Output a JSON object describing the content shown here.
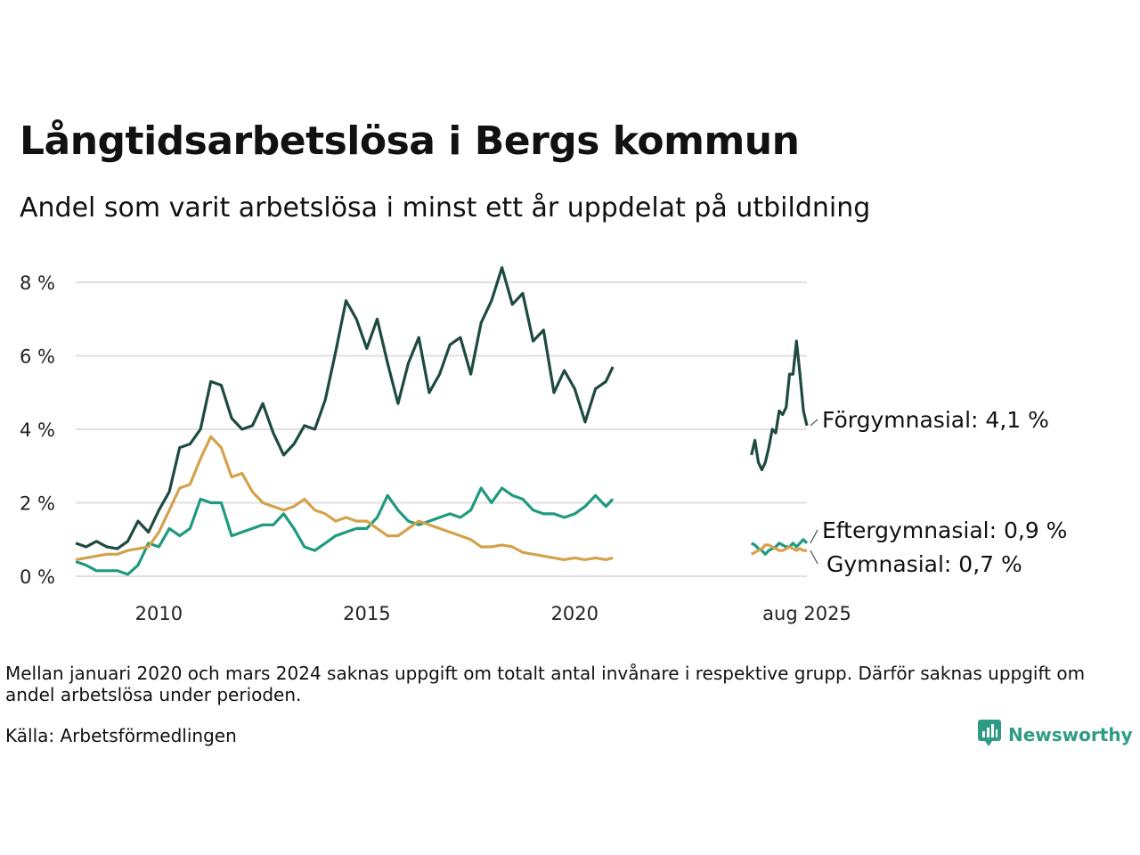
{
  "title": "Långtidsarbetslösa i Bergs kommun",
  "subtitle": "Andel som varit arbetslösa i minst ett år uppdelat på utbildning",
  "note": "Mellan januari 2020 och mars 2024 saknas uppgift om totalt antal invånare i respektive grupp. Därför saknas uppgift om andel arbetslösa under perioden.",
  "source": "Källa: Arbetsförmedlingen",
  "brand": {
    "name": "Newsworthy",
    "icon": "bar-chart-speech-icon",
    "color": "#2e9c84"
  },
  "chart_data": {
    "type": "line",
    "xlabel": "",
    "ylabel": "",
    "ylim": [
      0,
      8.5
    ],
    "y_ticks": [
      {
        "value": 0,
        "label": "0 %"
      },
      {
        "value": 2,
        "label": "2 %"
      },
      {
        "value": 4,
        "label": "4 %"
      },
      {
        "value": 6,
        "label": "6 %"
      },
      {
        "value": 8,
        "label": "8 %"
      }
    ],
    "x_ticks": [
      {
        "value": "2010-01",
        "label": "2010"
      },
      {
        "value": "2015-01",
        "label": "2015"
      },
      {
        "value": "2020-01",
        "label": "2020"
      },
      {
        "value": "2025-08",
        "label": "aug 2025"
      }
    ],
    "grid": true,
    "legend": "end-labels",
    "series": [
      {
        "name": "Förgymnasial",
        "end_label": "Förgymnasial: 4,1 %",
        "color": "#1e4a42",
        "segments": [
          [
            [
              "2008-01",
              0.9
            ],
            [
              "2008-04",
              0.8
            ],
            [
              "2008-07",
              0.95
            ],
            [
              "2008-10",
              0.8
            ],
            [
              "2009-01",
              0.75
            ],
            [
              "2009-04",
              0.95
            ],
            [
              "2009-07",
              1.5
            ],
            [
              "2009-10",
              1.2
            ],
            [
              "2010-01",
              1.8
            ],
            [
              "2010-04",
              2.3
            ],
            [
              "2010-07",
              3.5
            ],
            [
              "2010-10",
              3.6
            ],
            [
              "2011-01",
              4.0
            ],
            [
              "2011-04",
              5.3
            ],
            [
              "2011-07",
              5.2
            ],
            [
              "2011-10",
              4.3
            ],
            [
              "2012-01",
              4.0
            ],
            [
              "2012-04",
              4.1
            ],
            [
              "2012-07",
              4.7
            ],
            [
              "2012-10",
              3.9
            ],
            [
              "2013-01",
              3.3
            ],
            [
              "2013-04",
              3.6
            ],
            [
              "2013-07",
              4.1
            ],
            [
              "2013-10",
              4.0
            ],
            [
              "2014-01",
              4.8
            ],
            [
              "2014-04",
              6.1
            ],
            [
              "2014-07",
              7.5
            ],
            [
              "2014-10",
              7.0
            ],
            [
              "2015-01",
              6.2
            ],
            [
              "2015-04",
              7.0
            ],
            [
              "2015-07",
              5.8
            ],
            [
              "2015-10",
              4.7
            ],
            [
              "2016-01",
              5.8
            ],
            [
              "2016-04",
              6.5
            ],
            [
              "2016-07",
              5.0
            ],
            [
              "2016-10",
              5.5
            ],
            [
              "2017-01",
              6.3
            ],
            [
              "2017-04",
              6.5
            ],
            [
              "2017-07",
              5.5
            ],
            [
              "2017-10",
              6.9
            ],
            [
              "2018-01",
              7.5
            ],
            [
              "2018-04",
              8.4
            ],
            [
              "2018-07",
              7.4
            ],
            [
              "2018-10",
              7.7
            ],
            [
              "2019-01",
              6.4
            ],
            [
              "2019-04",
              6.7
            ],
            [
              "2019-07",
              5.0
            ],
            [
              "2019-10",
              5.6
            ],
            [
              "2020-01",
              5.1
            ],
            [
              "2020-04",
              4.2
            ],
            [
              "2020-07",
              5.1
            ],
            [
              "2020-10",
              5.3
            ],
            [
              "2020-12",
              5.7
            ]
          ],
          [
            [
              "2024-04",
              3.3
            ],
            [
              "2024-05",
              3.7
            ],
            [
              "2024-06",
              3.1
            ],
            [
              "2024-07",
              2.9
            ],
            [
              "2024-08",
              3.1
            ],
            [
              "2024-09",
              3.5
            ],
            [
              "2024-10",
              4.0
            ],
            [
              "2024-11",
              3.9
            ],
            [
              "2024-12",
              4.5
            ],
            [
              "2025-01",
              4.4
            ],
            [
              "2025-02",
              4.6
            ],
            [
              "2025-03",
              5.5
            ],
            [
              "2025-04",
              5.5
            ],
            [
              "2025-05",
              6.4
            ],
            [
              "2025-06",
              5.5
            ],
            [
              "2025-07",
              4.5
            ],
            [
              "2025-08",
              4.1
            ]
          ]
        ]
      },
      {
        "name": "Eftergymnasial",
        "end_label": "Eftergymnasial: 0,9 %",
        "color": "#1f9a80",
        "segments": [
          [
            [
              "2008-01",
              0.4
            ],
            [
              "2008-04",
              0.3
            ],
            [
              "2008-07",
              0.15
            ],
            [
              "2008-10",
              0.15
            ],
            [
              "2009-01",
              0.15
            ],
            [
              "2009-04",
              0.05
            ],
            [
              "2009-07",
              0.3
            ],
            [
              "2009-10",
              0.9
            ],
            [
              "2010-01",
              0.8
            ],
            [
              "2010-04",
              1.3
            ],
            [
              "2010-07",
              1.1
            ],
            [
              "2010-10",
              1.3
            ],
            [
              "2011-01",
              2.1
            ],
            [
              "2011-04",
              2.0
            ],
            [
              "2011-07",
              2.0
            ],
            [
              "2011-10",
              1.1
            ],
            [
              "2012-01",
              1.2
            ],
            [
              "2012-04",
              1.3
            ],
            [
              "2012-07",
              1.4
            ],
            [
              "2012-10",
              1.4
            ],
            [
              "2013-01",
              1.7
            ],
            [
              "2013-04",
              1.3
            ],
            [
              "2013-07",
              0.8
            ],
            [
              "2013-10",
              0.7
            ],
            [
              "2014-01",
              0.9
            ],
            [
              "2014-04",
              1.1
            ],
            [
              "2014-07",
              1.2
            ],
            [
              "2014-10",
              1.3
            ],
            [
              "2015-01",
              1.3
            ],
            [
              "2015-04",
              1.6
            ],
            [
              "2015-07",
              2.2
            ],
            [
              "2015-10",
              1.8
            ],
            [
              "2016-01",
              1.5
            ],
            [
              "2016-04",
              1.4
            ],
            [
              "2016-07",
              1.5
            ],
            [
              "2016-10",
              1.6
            ],
            [
              "2017-01",
              1.7
            ],
            [
              "2017-04",
              1.6
            ],
            [
              "2017-07",
              1.8
            ],
            [
              "2017-10",
              2.4
            ],
            [
              "2018-01",
              2.0
            ],
            [
              "2018-04",
              2.4
            ],
            [
              "2018-07",
              2.2
            ],
            [
              "2018-10",
              2.1
            ],
            [
              "2019-01",
              1.8
            ],
            [
              "2019-04",
              1.7
            ],
            [
              "2019-07",
              1.7
            ],
            [
              "2019-10",
              1.6
            ],
            [
              "2020-01",
              1.7
            ],
            [
              "2020-04",
              1.9
            ],
            [
              "2020-07",
              2.2
            ],
            [
              "2020-10",
              1.9
            ],
            [
              "2020-12",
              2.1
            ]
          ],
          [
            [
              "2024-04",
              0.9
            ],
            [
              "2024-05",
              0.85
            ],
            [
              "2024-06",
              0.75
            ],
            [
              "2024-07",
              0.7
            ],
            [
              "2024-08",
              0.6
            ],
            [
              "2024-09",
              0.7
            ],
            [
              "2024-10",
              0.75
            ],
            [
              "2024-11",
              0.8
            ],
            [
              "2024-12",
              0.9
            ],
            [
              "2025-01",
              0.85
            ],
            [
              "2025-02",
              0.8
            ],
            [
              "2025-03",
              0.8
            ],
            [
              "2025-04",
              0.9
            ],
            [
              "2025-05",
              0.8
            ],
            [
              "2025-06",
              0.9
            ],
            [
              "2025-07",
              1.0
            ],
            [
              "2025-08",
              0.9
            ]
          ]
        ]
      },
      {
        "name": "Gymnasial",
        "end_label": "Gymnasial: 0,7 %",
        "color": "#d4a24c",
        "segments": [
          [
            [
              "2008-01",
              0.45
            ],
            [
              "2008-04",
              0.5
            ],
            [
              "2008-07",
              0.55
            ],
            [
              "2008-10",
              0.6
            ],
            [
              "2009-01",
              0.6
            ],
            [
              "2009-04",
              0.7
            ],
            [
              "2009-07",
              0.75
            ],
            [
              "2009-10",
              0.8
            ],
            [
              "2010-01",
              1.2
            ],
            [
              "2010-04",
              1.8
            ],
            [
              "2010-07",
              2.4
            ],
            [
              "2010-10",
              2.5
            ],
            [
              "2011-01",
              3.2
            ],
            [
              "2011-04",
              3.8
            ],
            [
              "2011-07",
              3.5
            ],
            [
              "2011-10",
              2.7
            ],
            [
              "2012-01",
              2.8
            ],
            [
              "2012-04",
              2.3
            ],
            [
              "2012-07",
              2.0
            ],
            [
              "2012-10",
              1.9
            ],
            [
              "2013-01",
              1.8
            ],
            [
              "2013-04",
              1.9
            ],
            [
              "2013-07",
              2.1
            ],
            [
              "2013-10",
              1.8
            ],
            [
              "2014-01",
              1.7
            ],
            [
              "2014-04",
              1.5
            ],
            [
              "2014-07",
              1.6
            ],
            [
              "2014-10",
              1.5
            ],
            [
              "2015-01",
              1.5
            ],
            [
              "2015-04",
              1.3
            ],
            [
              "2015-07",
              1.1
            ],
            [
              "2015-10",
              1.1
            ],
            [
              "2016-01",
              1.3
            ],
            [
              "2016-04",
              1.5
            ],
            [
              "2016-07",
              1.4
            ],
            [
              "2016-10",
              1.3
            ],
            [
              "2017-01",
              1.2
            ],
            [
              "2017-04",
              1.1
            ],
            [
              "2017-07",
              1.0
            ],
            [
              "2017-10",
              0.8
            ],
            [
              "2018-01",
              0.8
            ],
            [
              "2018-04",
              0.85
            ],
            [
              "2018-07",
              0.8
            ],
            [
              "2018-10",
              0.65
            ],
            [
              "2019-01",
              0.6
            ],
            [
              "2019-04",
              0.55
            ],
            [
              "2019-07",
              0.5
            ],
            [
              "2019-10",
              0.45
            ],
            [
              "2020-01",
              0.5
            ],
            [
              "2020-04",
              0.45
            ],
            [
              "2020-07",
              0.5
            ],
            [
              "2020-10",
              0.45
            ],
            [
              "2020-12",
              0.5
            ]
          ],
          [
            [
              "2024-04",
              0.6
            ],
            [
              "2024-05",
              0.65
            ],
            [
              "2024-06",
              0.7
            ],
            [
              "2024-07",
              0.75
            ],
            [
              "2024-08",
              0.85
            ],
            [
              "2024-09",
              0.85
            ],
            [
              "2024-10",
              0.8
            ],
            [
              "2024-11",
              0.75
            ],
            [
              "2024-12",
              0.7
            ],
            [
              "2025-01",
              0.7
            ],
            [
              "2025-02",
              0.75
            ],
            [
              "2025-03",
              0.8
            ],
            [
              "2025-04",
              0.75
            ],
            [
              "2025-05",
              0.7
            ],
            [
              "2025-06",
              0.75
            ],
            [
              "2025-07",
              0.7
            ],
            [
              "2025-08",
              0.7
            ]
          ]
        ]
      }
    ]
  }
}
